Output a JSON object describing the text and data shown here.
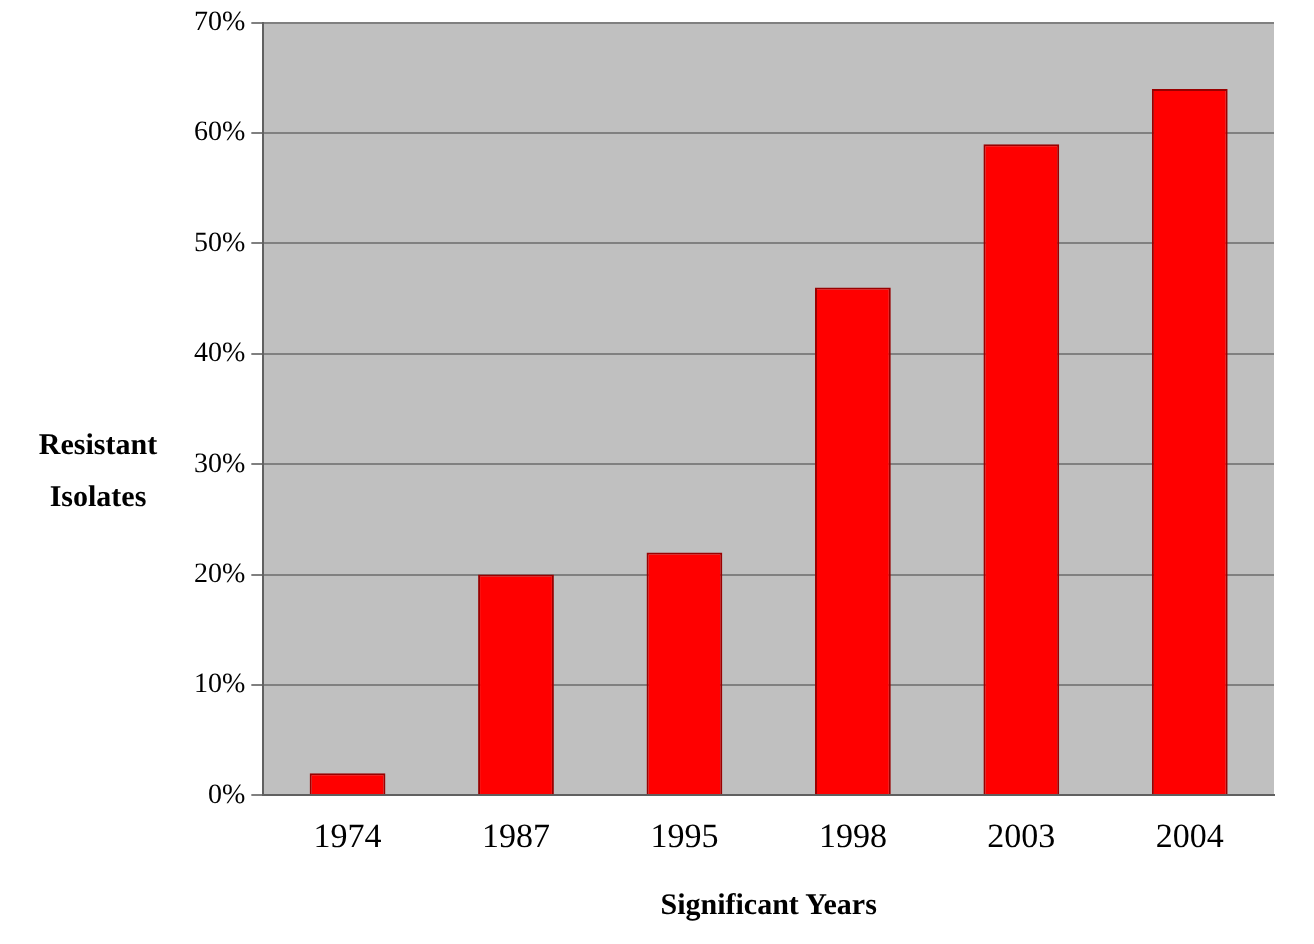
{
  "chart_data": {
    "type": "bar",
    "xlabel": "Significant Years",
    "ylabel": "Resistant Isolates",
    "categories": [
      "1974",
      "1987",
      "1995",
      "1998",
      "2003",
      "2004"
    ],
    "values": [
      2,
      20,
      22,
      46,
      59,
      64
    ],
    "color": "#ff0000",
    "ylim": [
      0,
      70
    ],
    "yticks": [
      {
        "value": 0,
        "label": "0%"
      },
      {
        "value": 10,
        "label": "10%"
      },
      {
        "value": 20,
        "label": "20%"
      },
      {
        "value": 30,
        "label": "30%"
      },
      {
        "value": 40,
        "label": "40%"
      },
      {
        "value": 50,
        "label": "50%"
      },
      {
        "value": 60,
        "label": "60%"
      },
      {
        "value": 70,
        "label": "70%"
      }
    ],
    "grid": "y",
    "legend": false
  }
}
